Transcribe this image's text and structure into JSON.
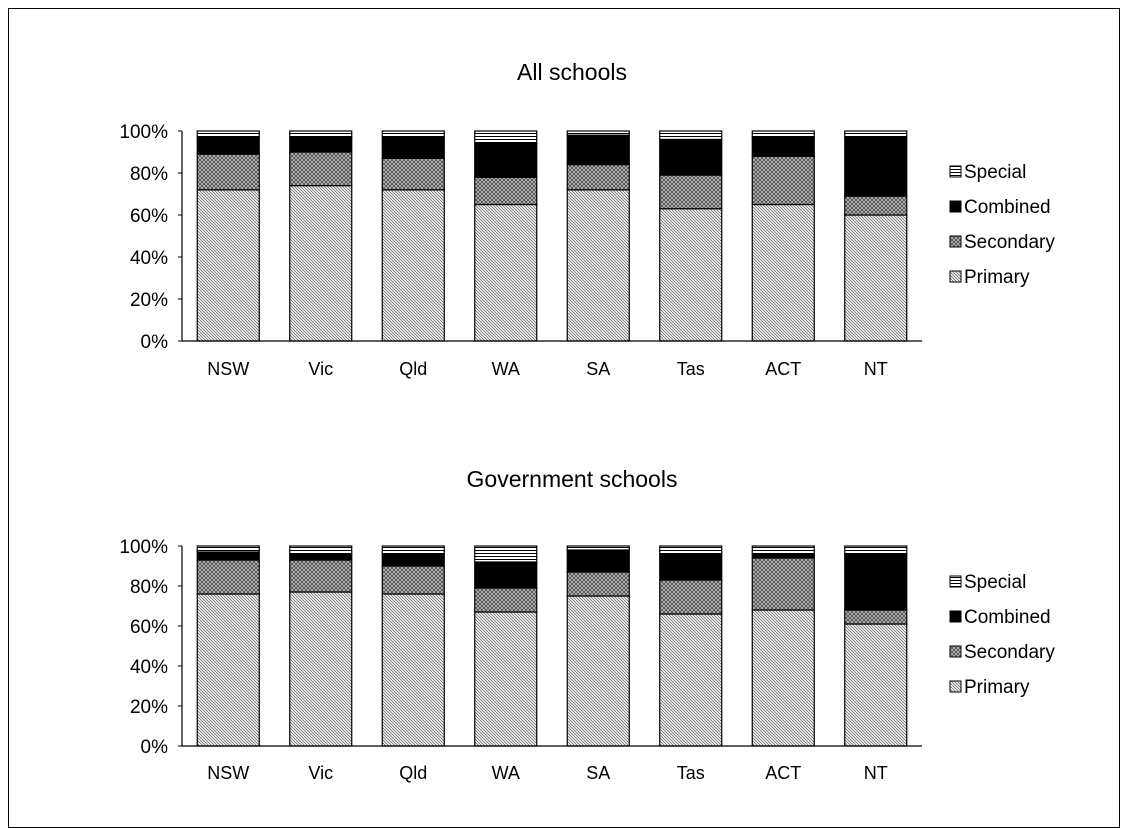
{
  "chart_data": [
    {
      "type": "bar",
      "stacked": true,
      "title": "All schools",
      "categories": [
        "NSW",
        "Vic",
        "Qld",
        "WA",
        "SA",
        "Tas",
        "ACT",
        "NT"
      ],
      "yticks": [
        "0%",
        "20%",
        "40%",
        "60%",
        "80%",
        "100%"
      ],
      "ylim": [
        0,
        100
      ],
      "legend_position": "right",
      "series": [
        {
          "name": "Primary",
          "pattern": "dense-diagonal",
          "values": [
            72,
            74,
            72,
            65,
            72,
            63,
            65,
            60
          ]
        },
        {
          "name": "Secondary",
          "pattern": "crosshatch",
          "values": [
            17,
            16,
            15,
            13,
            12,
            16,
            23,
            9
          ]
        },
        {
          "name": "Combined",
          "pattern": "solid-black",
          "values": [
            8,
            7,
            10,
            16,
            14,
            17,
            9,
            28
          ]
        },
        {
          "name": "Special",
          "pattern": "horizontal-lines",
          "values": [
            3,
            3,
            3,
            6,
            2,
            4,
            3,
            3
          ]
        }
      ],
      "legend_order": [
        "Special",
        "Combined",
        "Secondary",
        "Primary"
      ]
    },
    {
      "type": "bar",
      "stacked": true,
      "title": "Government schools",
      "categories": [
        "NSW",
        "Vic",
        "Qld",
        "WA",
        "SA",
        "Tas",
        "ACT",
        "NT"
      ],
      "yticks": [
        "0%",
        "20%",
        "40%",
        "60%",
        "80%",
        "100%"
      ],
      "ylim": [
        0,
        100
      ],
      "legend_position": "right",
      "series": [
        {
          "name": "Primary",
          "pattern": "dense-diagonal",
          "values": [
            76,
            77,
            76,
            67,
            75,
            66,
            68,
            61
          ]
        },
        {
          "name": "Secondary",
          "pattern": "crosshatch",
          "values": [
            17,
            16,
            14,
            12,
            12,
            17,
            26,
            7
          ]
        },
        {
          "name": "Combined",
          "pattern": "solid-black",
          "values": [
            4,
            3,
            6,
            13,
            11,
            13,
            2,
            28
          ]
        },
        {
          "name": "Special",
          "pattern": "horizontal-lines",
          "values": [
            3,
            4,
            4,
            8,
            2,
            4,
            4,
            4
          ]
        }
      ],
      "legend_order": [
        "Special",
        "Combined",
        "Secondary",
        "Primary"
      ]
    }
  ]
}
